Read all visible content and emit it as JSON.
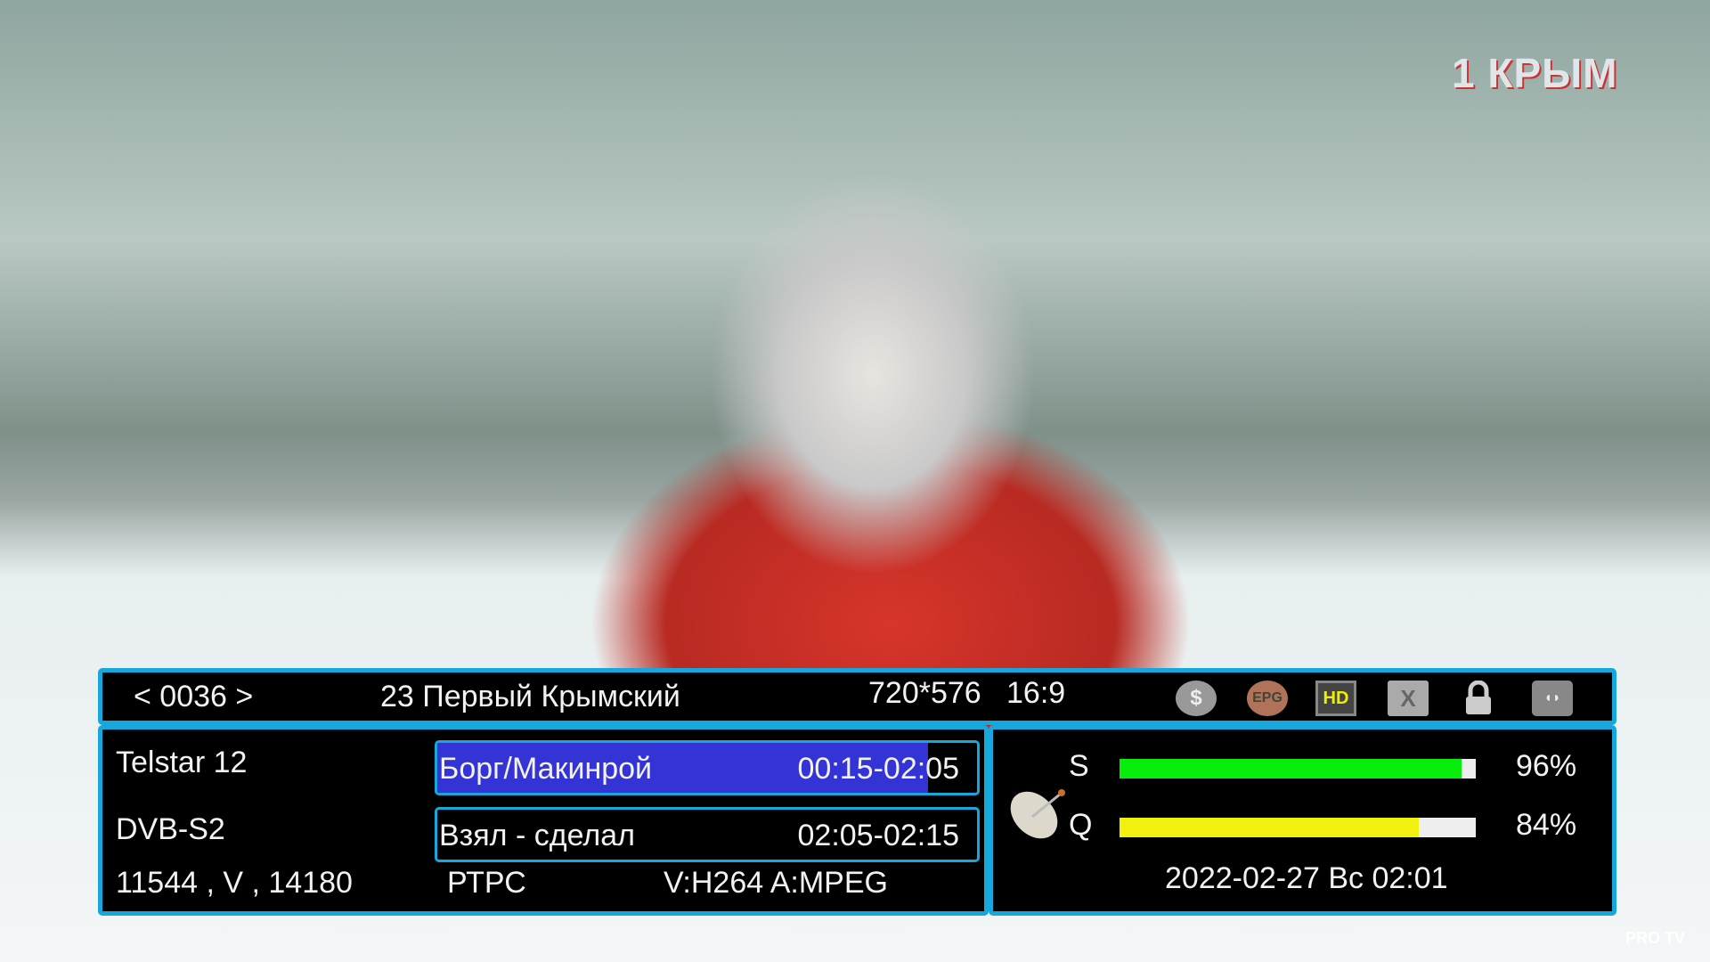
{
  "video": {
    "channel_logo": "1 КРЫМ",
    "watermark": "PRO TV"
  },
  "top": {
    "channel_number": "< 0036 >",
    "channel_name": "23 Первый Крымский",
    "resolution": "720*576",
    "aspect": "16:9",
    "icons": [
      "scramble-icon",
      "epg-icon",
      "hd-icon",
      "subtitle-folder-icon",
      "lock-icon",
      "dolby-audio-icon"
    ],
    "epg_label": "EPG",
    "hd_label": "HD"
  },
  "info": {
    "satellite": "Telstar 12",
    "system": "DVB-S2",
    "transponder": "11544 , V , 14180",
    "provider": "РТРС",
    "codecs": "V:H264 A:MPEG"
  },
  "events": [
    {
      "title": "Борг/Макинрой",
      "time": "00:15-02:05",
      "progress_percent": 91
    },
    {
      "title": "Взял - сделал",
      "time": "02:05-02:15"
    }
  ],
  "signal": {
    "strength_label": "S",
    "strength_value": "96%",
    "strength_percent": 96,
    "quality_label": "Q",
    "quality_value": "84%",
    "quality_percent": 84,
    "strength_color": "#08ee0c",
    "quality_color": "#f2f00f",
    "datetime": "2022-02-27 Вс 02:01"
  }
}
